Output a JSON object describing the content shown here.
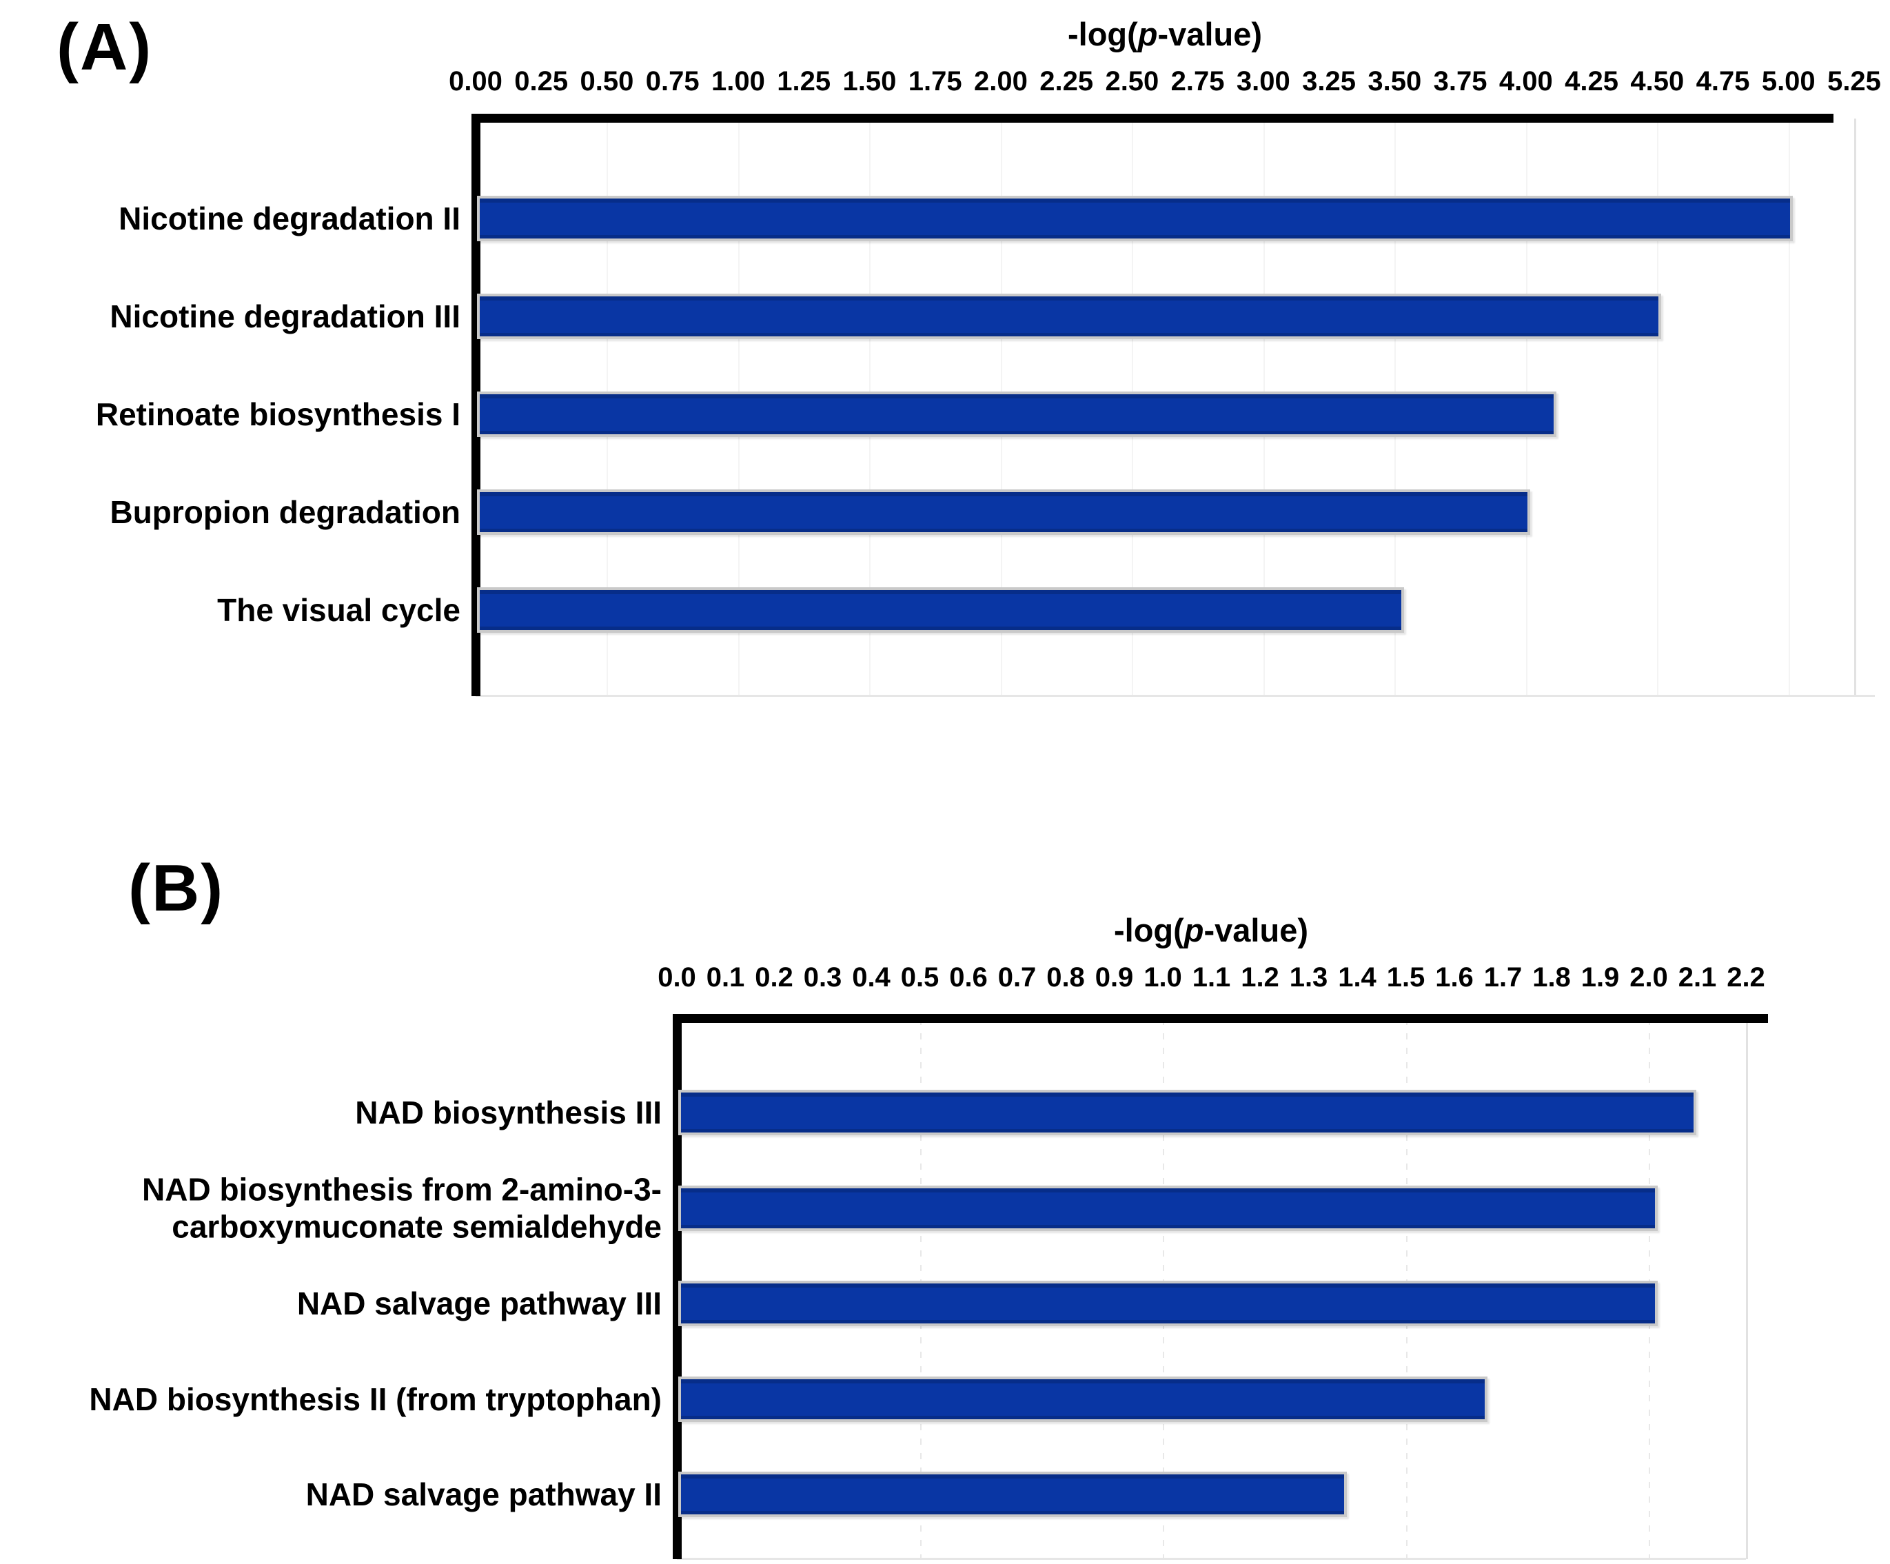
{
  "figure": {
    "panel_a_label": "(A)",
    "panel_b_label": "(B)",
    "axis_title_prefix": "-log(",
    "axis_title_italic": "p",
    "axis_title_suffix": "-value)"
  },
  "colors": {
    "bar_fill": "#0936A4",
    "bar_border": "#C9C9C9",
    "axis_line": "#000000",
    "text": "#000000",
    "background": "#FFFFFF"
  },
  "chart_data": [
    {
      "id": "A",
      "type": "bar",
      "orientation": "horizontal",
      "title": "-log(p-value)",
      "xlabel": "-log(p-value)",
      "ylabel": "",
      "legend": "none",
      "grid": "faint-solid-vertical",
      "xlim": [
        0,
        5.25
      ],
      "tick_step": 0.25,
      "tick_labels": [
        "0.00",
        "0.25",
        "0.50",
        "0.75",
        "1.00",
        "1.25",
        "1.50",
        "1.75",
        "2.00",
        "2.25",
        "2.50",
        "2.75",
        "3.00",
        "3.25",
        "3.50",
        "3.75",
        "4.00",
        "4.25",
        "4.50",
        "4.75",
        "5.00",
        "5.25"
      ],
      "categories": [
        "Nicotine degradation II",
        "Nicotine degradation III",
        "Retinoate biosynthesis I",
        "Bupropion degradation",
        "The visual cycle"
      ],
      "values": [
        5.0,
        4.5,
        4.1,
        4.0,
        3.52
      ]
    },
    {
      "id": "B",
      "type": "bar",
      "orientation": "horizontal",
      "title": "-log(p-value)",
      "xlabel": "-log(p-value)",
      "ylabel": "",
      "legend": "none",
      "grid": "faint-dashed-vertical",
      "xlim": [
        0,
        2.2
      ],
      "tick_step": 0.1,
      "tick_labels": [
        "0.0",
        "0.1",
        "0.2",
        "0.3",
        "0.4",
        "0.5",
        "0.6",
        "0.7",
        "0.8",
        "0.9",
        "1.0",
        "1.1",
        "1.2",
        "1.3",
        "1.4",
        "1.5",
        "1.6",
        "1.7",
        "1.8",
        "1.9",
        "2.0",
        "2.1",
        "2.2"
      ],
      "categories": [
        "NAD biosynthesis III",
        "NAD biosynthesis from 2-amino-3-\ncarboxymuconate semialdehyde",
        "NAD salvage pathway III",
        "NAD biosynthesis II (from tryptophan)",
        "NAD salvage pathway II"
      ],
      "values": [
        2.09,
        2.01,
        2.01,
        1.66,
        1.37
      ]
    }
  ]
}
